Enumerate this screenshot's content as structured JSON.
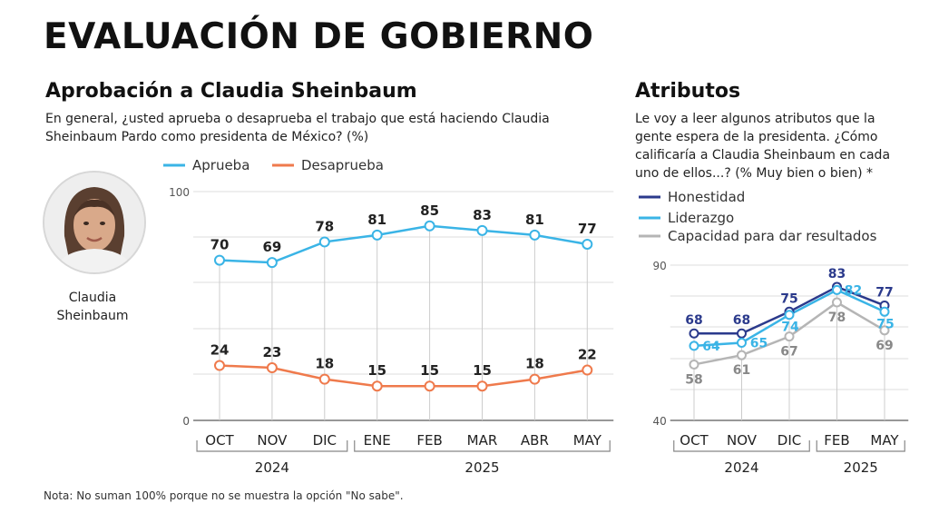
{
  "title": "EVALUACIÓN DE GOBIERNO",
  "left": {
    "title": "Aprobación a Claudia Sheinbaum",
    "question": "En general, ¿usted aprueba o desaprueba el trabajo que está haciendo Claudia Sheinbaum Pardo como presidenta de México? (%)",
    "person_name": "Claudia Sheinbaum"
  },
  "right": {
    "title": "Atributos",
    "question": "Le voy a leer algunos atributos que la gente espera de la presidenta. ¿Cómo calificaría a Claudia Sheinbaum en cada uno de ellos...? (% Muy bien o bien) *"
  },
  "note": "Nota: No suman 100% porque no se muestra la opción \"No sabe\".",
  "chart_data": [
    {
      "type": "line",
      "categories": [
        "OCT",
        "NOV",
        "DIC",
        "ENE",
        "FEB",
        "MAR",
        "ABR",
        "MAY"
      ],
      "year_groups": [
        {
          "label": "2024",
          "categories": [
            "OCT",
            "NOV",
            "DIC"
          ]
        },
        {
          "label": "2025",
          "categories": [
            "ENE",
            "FEB",
            "MAR",
            "ABR",
            "MAY"
          ]
        }
      ],
      "series": [
        {
          "name": "Aprueba",
          "color": "#3ab4e6",
          "values": [
            70,
            69,
            78,
            81,
            85,
            83,
            81,
            77
          ]
        },
        {
          "name": "Desaprueba",
          "color": "#ef7a4c",
          "values": [
            24,
            23,
            18,
            15,
            15,
            15,
            18,
            22
          ]
        }
      ],
      "ylim": [
        0,
        100
      ],
      "yticks": [
        0,
        100
      ],
      "grid": true,
      "legend": "top"
    },
    {
      "type": "line",
      "categories": [
        "OCT",
        "NOV",
        "DIC",
        "FEB",
        "MAY"
      ],
      "year_groups": [
        {
          "label": "2024",
          "categories": [
            "OCT",
            "NOV",
            "DIC"
          ]
        },
        {
          "label": "2025",
          "categories": [
            "FEB",
            "MAY"
          ]
        }
      ],
      "series": [
        {
          "name": "Honestidad",
          "color": "#2b3a8c",
          "values": [
            68,
            68,
            75,
            83,
            77
          ]
        },
        {
          "name": "Liderazgo",
          "color": "#3ab4e6",
          "values": [
            64,
            65,
            74,
            82,
            75
          ]
        },
        {
          "name": "Capacidad para dar resultados",
          "color": "#b5b5b5",
          "values": [
            58,
            61,
            67,
            78,
            69
          ]
        }
      ],
      "ylim": [
        40,
        90
      ],
      "yticks": [
        40,
        90
      ],
      "grid": true,
      "legend": "top-left"
    }
  ]
}
